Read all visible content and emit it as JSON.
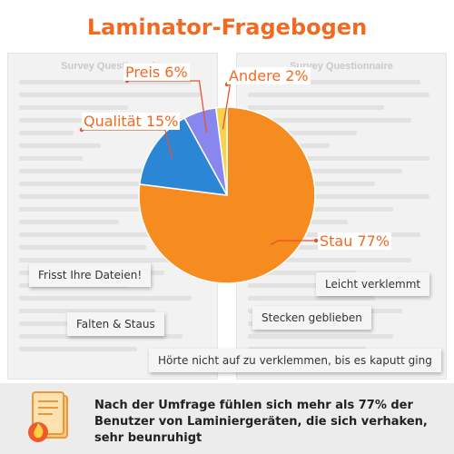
{
  "title": "Laminator-Fragebogen",
  "background_docs": {
    "left_title": "Survey Questionnaire",
    "right_title": "Survey Questionnaire"
  },
  "chart_data": {
    "type": "pie",
    "title": "Laminator-Fragebogen",
    "slices": [
      {
        "label": "Stau 77%",
        "value": 77,
        "color": "#f68b1f"
      },
      {
        "label": "Qualität 15%",
        "value": 15,
        "color": "#2b86d6"
      },
      {
        "label": "Preis 6%",
        "value": 6,
        "color": "#8a86f0"
      },
      {
        "label": "Andere 2%",
        "value": 2,
        "color": "#f7d44c"
      }
    ],
    "start_angle_deg": 0,
    "direction": "clockwise"
  },
  "bubbles": [
    "Frisst Ihre Dateien!",
    "Leicht verklemmt",
    "Falten & Staus",
    "Stecken geblieben",
    "Hörte nicht auf zu verklemmen, bis es kaputt ging"
  ],
  "footer": {
    "text": "Nach der Umfrage fühlen sich mehr als 77% der Benutzer von Laminiergeräten, die sich verhaken, sehr beunruhigt",
    "icon": "document-fire-icon"
  },
  "colors": {
    "accent": "#f26a21",
    "leader": "#e8542a"
  }
}
